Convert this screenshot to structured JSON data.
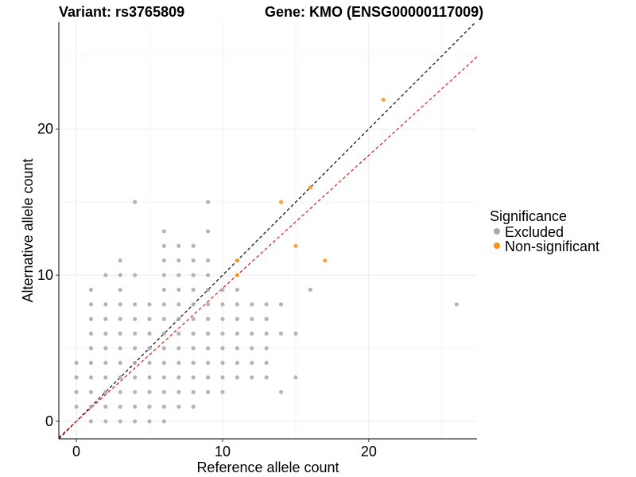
{
  "chart_data": {
    "type": "scatter",
    "title_left": "Variant: rs3765809",
    "title_right": "Gene: KMO (ENSG00000117009)",
    "xlabel": "Reference allele count",
    "ylabel": "Alternative allele count",
    "xlim": [
      -1.2,
      27.4
    ],
    "ylim": [
      -1.2,
      27.3
    ],
    "x_ticks": [
      0,
      10,
      20
    ],
    "y_ticks": [
      0,
      10,
      20
    ],
    "grid": true,
    "legend": {
      "title": "Significance",
      "placement": "right",
      "entries": [
        {
          "label": "Excluded",
          "color": "#a8a8a8"
        },
        {
          "label": "Non-significant",
          "color": "#f7941d"
        }
      ]
    },
    "reference_lines": [
      {
        "name": "identity",
        "slope": 1,
        "intercept": 0,
        "color": "#000000",
        "dash": true
      },
      {
        "name": "fit",
        "slope": 0.91,
        "intercept": 0,
        "color": "#e41a1c",
        "dash": true
      }
    ],
    "series": [
      {
        "name": "Excluded",
        "color": "#a8a8a8",
        "points": [
          [
            0,
            1
          ],
          [
            0,
            2
          ],
          [
            0,
            3
          ],
          [
            0,
            4
          ],
          [
            1,
            0
          ],
          [
            1,
            1
          ],
          [
            1,
            2
          ],
          [
            1,
            3
          ],
          [
            1,
            4
          ],
          [
            1,
            5
          ],
          [
            1,
            6
          ],
          [
            1,
            7
          ],
          [
            1,
            8
          ],
          [
            1,
            9
          ],
          [
            2,
            0
          ],
          [
            2,
            1
          ],
          [
            2,
            2
          ],
          [
            2,
            3
          ],
          [
            2,
            4
          ],
          [
            2,
            5
          ],
          [
            2,
            6
          ],
          [
            2,
            7
          ],
          [
            2,
            8
          ],
          [
            2,
            10
          ],
          [
            3,
            0
          ],
          [
            3,
            1
          ],
          [
            3,
            2
          ],
          [
            3,
            3
          ],
          [
            3,
            4
          ],
          [
            3,
            5
          ],
          [
            3,
            6
          ],
          [
            3,
            7
          ],
          [
            3,
            8
          ],
          [
            3,
            9
          ],
          [
            3,
            10
          ],
          [
            3,
            11
          ],
          [
            4,
            0
          ],
          [
            4,
            1
          ],
          [
            4,
            2
          ],
          [
            4,
            3
          ],
          [
            4,
            4
          ],
          [
            4,
            5
          ],
          [
            4,
            6
          ],
          [
            4,
            7
          ],
          [
            4,
            8
          ],
          [
            4,
            10
          ],
          [
            4,
            15
          ],
          [
            5,
            0
          ],
          [
            5,
            1
          ],
          [
            5,
            2
          ],
          [
            5,
            3
          ],
          [
            5,
            4
          ],
          [
            5,
            5
          ],
          [
            5,
            6
          ],
          [
            5,
            7
          ],
          [
            5,
            8
          ],
          [
            6,
            0
          ],
          [
            6,
            1
          ],
          [
            6,
            2
          ],
          [
            6,
            3
          ],
          [
            6,
            4
          ],
          [
            6,
            5
          ],
          [
            6,
            6
          ],
          [
            6,
            7
          ],
          [
            6,
            8
          ],
          [
            6,
            9
          ],
          [
            6,
            10
          ],
          [
            6,
            11
          ],
          [
            6,
            12
          ],
          [
            6,
            13
          ],
          [
            7,
            1
          ],
          [
            7,
            2
          ],
          [
            7,
            3
          ],
          [
            7,
            4
          ],
          [
            7,
            5
          ],
          [
            7,
            6
          ],
          [
            7,
            7
          ],
          [
            7,
            8
          ],
          [
            7,
            9
          ],
          [
            7,
            10
          ],
          [
            7,
            11
          ],
          [
            7,
            12
          ],
          [
            8,
            1
          ],
          [
            8,
            2
          ],
          [
            8,
            3
          ],
          [
            8,
            4
          ],
          [
            8,
            5
          ],
          [
            8,
            6
          ],
          [
            8,
            7
          ],
          [
            8,
            8
          ],
          [
            8,
            9
          ],
          [
            8,
            10
          ],
          [
            8,
            11
          ],
          [
            8,
            12
          ],
          [
            9,
            2
          ],
          [
            9,
            3
          ],
          [
            9,
            4
          ],
          [
            9,
            5
          ],
          [
            9,
            6
          ],
          [
            9,
            7
          ],
          [
            9,
            8
          ],
          [
            9,
            9
          ],
          [
            9,
            10
          ],
          [
            9,
            11
          ],
          [
            9,
            13
          ],
          [
            9,
            15
          ],
          [
            10,
            2
          ],
          [
            10,
            3
          ],
          [
            10,
            4
          ],
          [
            10,
            5
          ],
          [
            10,
            6
          ],
          [
            10,
            7
          ],
          [
            10,
            8
          ],
          [
            10,
            9
          ],
          [
            11,
            3
          ],
          [
            11,
            4
          ],
          [
            11,
            5
          ],
          [
            11,
            6
          ],
          [
            11,
            7
          ],
          [
            11,
            8
          ],
          [
            11,
            9
          ],
          [
            11,
            11
          ],
          [
            12,
            3
          ],
          [
            12,
            4
          ],
          [
            12,
            5
          ],
          [
            12,
            6
          ],
          [
            12,
            7
          ],
          [
            12,
            8
          ],
          [
            13,
            3
          ],
          [
            13,
            4
          ],
          [
            13,
            5
          ],
          [
            13,
            6
          ],
          [
            13,
            7
          ],
          [
            13,
            8
          ],
          [
            14,
            2
          ],
          [
            14,
            6
          ],
          [
            14,
            8
          ],
          [
            15,
            3
          ],
          [
            15,
            6
          ],
          [
            16,
            9
          ],
          [
            26,
            8
          ]
        ]
      },
      {
        "name": "Non-significant",
        "color": "#f7941d",
        "points": [
          [
            11,
            10
          ],
          [
            11,
            11
          ],
          [
            14,
            15
          ],
          [
            15,
            12
          ],
          [
            16,
            16
          ],
          [
            17,
            11
          ],
          [
            21,
            22
          ]
        ]
      }
    ]
  }
}
